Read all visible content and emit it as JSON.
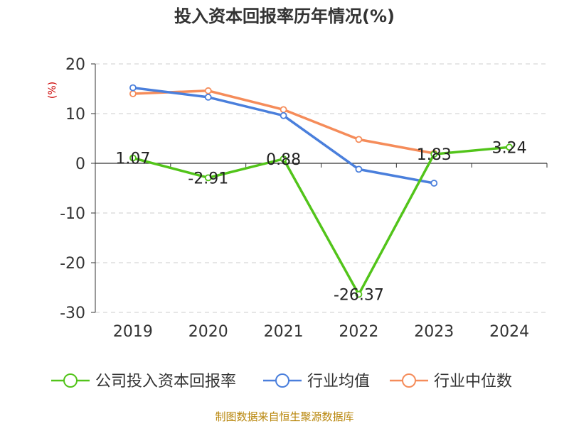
{
  "chart_data": {
    "type": "line",
    "title": "投入资本回报率历年情况(%)",
    "y_unit": "(%)",
    "categories": [
      "2019",
      "2020",
      "2021",
      "2022",
      "2023",
      "2024"
    ],
    "ylim": [
      -30,
      20
    ],
    "yticks": [
      20,
      10,
      0,
      -10,
      -20,
      -30
    ],
    "grid": true,
    "legend_position": "bottom",
    "series": [
      {
        "name": "公司投入资本回报率",
        "color": "#52c41a",
        "values": [
          1.07,
          -2.91,
          0.88,
          -26.37,
          1.83,
          3.24
        ],
        "labels": [
          "1.07",
          "-2.91",
          "0.88",
          "-26.37",
          "1.83",
          "3.24"
        ]
      },
      {
        "name": "行业均值",
        "color": "#4a7fdc",
        "values": [
          15.2,
          13.3,
          9.6,
          -1.2,
          -4.0,
          null
        ]
      },
      {
        "name": "行业中位数",
        "color": "#f58c5a",
        "values": [
          14.0,
          14.6,
          10.8,
          4.8,
          2.0,
          null
        ]
      }
    ]
  },
  "source": "制图数据来自恒生聚源数据库"
}
